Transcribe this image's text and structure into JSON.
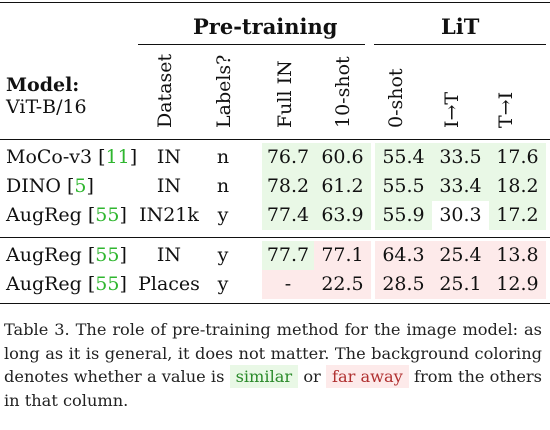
{
  "table": {
    "group_headers": [
      {
        "label": "Pre-training",
        "id": "pretraining"
      },
      {
        "label": "LiT",
        "id": "lit"
      }
    ],
    "model_header": {
      "line1": "Model:",
      "line2": "ViT-B/16"
    },
    "col_headers": [
      "Dataset",
      "Labels?",
      "Full IN",
      "10-shot",
      "0-shot",
      "I→T",
      "T→I"
    ],
    "rows": [
      {
        "model": "MoCo-v3",
        "cite": "11",
        "dataset": "IN",
        "labels": "n",
        "vals": [
          "76.7",
          "60.6",
          "55.4",
          "33.5",
          "17.6"
        ],
        "bg": [
          "similar",
          "similar",
          "similar",
          "similar",
          "similar"
        ]
      },
      {
        "model": "DINO",
        "cite": "5",
        "dataset": "IN",
        "labels": "n",
        "vals": [
          "78.2",
          "61.2",
          "55.5",
          "33.4",
          "18.2"
        ],
        "bg": [
          "similar",
          "similar",
          "similar",
          "similar",
          "similar"
        ]
      },
      {
        "model": "AugReg",
        "cite": "55",
        "dataset": "IN21k",
        "labels": "y",
        "vals": [
          "77.4",
          "63.9",
          "55.9",
          "30.3",
          "17.2"
        ],
        "bg": [
          "similar",
          "similar",
          "similar",
          "none",
          "similar"
        ]
      },
      {
        "model": "AugReg",
        "cite": "55",
        "dataset": "IN",
        "labels": "y",
        "vals": [
          "77.7",
          "77.1",
          "64.3",
          "25.4",
          "13.8"
        ],
        "bg": [
          "similar",
          "far",
          "far",
          "far",
          "far"
        ]
      },
      {
        "model": "AugReg",
        "cite": "55",
        "dataset": "Places",
        "labels": "y",
        "vals": [
          "-",
          "22.5",
          "28.5",
          "25.1",
          "12.9"
        ],
        "bg": [
          "far",
          "far",
          "far",
          "far",
          "far"
        ]
      }
    ]
  },
  "caption": {
    "prefix": "Table 3. The role of pre-training method for the image model: as long as it is general, it does not matter. The background coloring denotes whether a value is",
    "similar": "similar",
    "middle": "or",
    "far": "far away",
    "suffix": "from the others in that column."
  },
  "colors": {
    "similar_bg": "#e9f8e6",
    "far_bg": "#fdeaea",
    "cite": "#2fb62f"
  }
}
